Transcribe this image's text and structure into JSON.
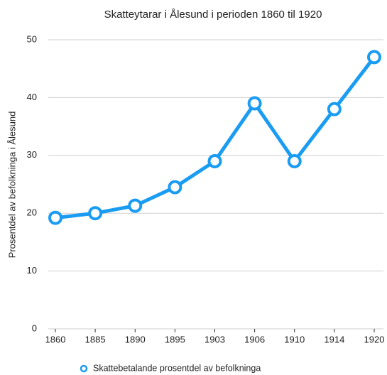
{
  "chart_data": {
    "type": "line",
    "title": "Skatteytarar i Ålesund i perioden 1860 til 1920",
    "y_label": "Prosentdel av befolkninga i Ålesund",
    "categories": [
      "1860",
      "1885",
      "1890",
      "1895",
      "1903",
      "1906",
      "1910",
      "1914",
      "1920"
    ],
    "series": [
      {
        "name": "Skattebetalande prosentdel av befolkninga",
        "color": "#1a9cf2",
        "values": [
          19.2,
          20,
          21.3,
          24.5,
          29,
          39,
          29,
          38,
          47
        ]
      }
    ],
    "ylim": [
      0,
      50
    ],
    "yticks": [
      0,
      10,
      20,
      30,
      40,
      50
    ],
    "grid": true,
    "legend": "bottom"
  }
}
